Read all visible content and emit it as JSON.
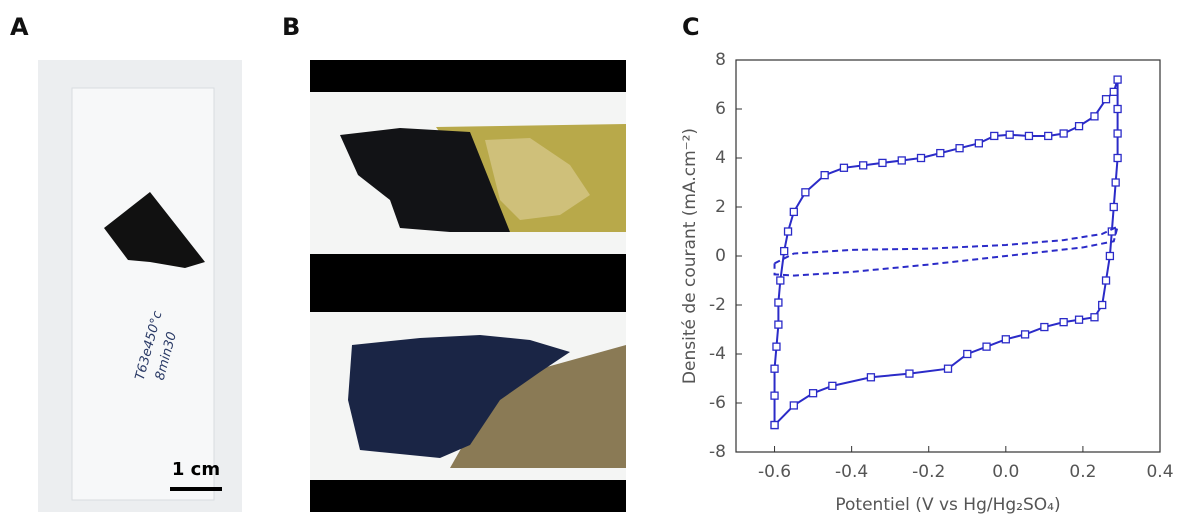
{
  "panels": {
    "A": {
      "label": "A",
      "scale_bar": "1 cm",
      "handwriting": [
        "T63e450°c",
        "8min30"
      ]
    },
    "B": {
      "label": "B"
    }
  },
  "chart_data": {
    "type": "line",
    "panel_label": "C",
    "xlabel": "Potentiel (V vs Hg/Hg₂SO₄)",
    "ylabel": "Densité de courant (mA.cm⁻²)",
    "xlim": [
      -0.7,
      0.4
    ],
    "xticks": [
      -0.6,
      -0.4,
      -0.2,
      {
        "value": 0,
        "label": "0.0"
      },
      0.2,
      0.4
    ],
    "ylim": [
      -8,
      8
    ],
    "yticks": [
      -8,
      -6,
      -4,
      -2,
      0,
      2,
      4,
      6,
      8
    ],
    "series": [
      {
        "color": "#2b2bc8",
        "style": "solid",
        "marker": "square",
        "x": [
          -0.6,
          -0.6,
          -0.6,
          -0.595,
          -0.59,
          -0.59,
          -0.585,
          -0.575,
          -0.565,
          -0.55,
          -0.52,
          -0.47,
          -0.42,
          -0.37,
          -0.32,
          -0.27,
          -0.22,
          -0.17,
          -0.12,
          -0.07,
          -0.03,
          0.01,
          0.06,
          0.11,
          0.15,
          0.19,
          0.23,
          0.26,
          0.28,
          0.29,
          0.29,
          0.29,
          0.29,
          0.285,
          0.28,
          0.275,
          0.27,
          0.26,
          0.25,
          0.23,
          0.19,
          0.15,
          0.1,
          0.05,
          0.0,
          -0.05,
          -0.1,
          -0.15,
          -0.25,
          -0.35,
          -0.45,
          -0.5,
          -0.55,
          -0.6
        ],
        "values": [
          -6.9,
          -5.7,
          -4.6,
          -3.7,
          -2.8,
          -1.9,
          -1.0,
          0.2,
          1.0,
          1.8,
          2.6,
          3.3,
          3.6,
          3.7,
          3.8,
          3.9,
          4.0,
          4.2,
          4.4,
          4.6,
          4.9,
          4.95,
          4.9,
          4.9,
          5.0,
          5.3,
          5.7,
          6.4,
          6.7,
          7.2,
          6.0,
          5.0,
          4.0,
          3.0,
          2.0,
          1.0,
          0.0,
          -1.0,
          -2.0,
          -2.5,
          -2.6,
          -2.7,
          -2.9,
          -3.2,
          -3.4,
          -3.7,
          -4.0,
          -4.6,
          -4.8,
          -4.95,
          -5.3,
          -5.6,
          -6.1,
          -6.9
        ]
      },
      {
        "color": "#2b2bc8",
        "style": "dashed",
        "marker": "none",
        "x": [
          -0.6,
          -0.55,
          -0.4,
          -0.2,
          0.0,
          0.15,
          0.25,
          0.29,
          0.28,
          0.2,
          0.0,
          -0.2,
          -0.4,
          -0.55,
          -0.6,
          -0.6
        ],
        "values": [
          -0.3,
          0.1,
          0.25,
          0.3,
          0.45,
          0.65,
          0.9,
          1.2,
          0.6,
          0.35,
          0.0,
          -0.35,
          -0.65,
          -0.8,
          -0.75,
          -0.3
        ]
      }
    ]
  }
}
